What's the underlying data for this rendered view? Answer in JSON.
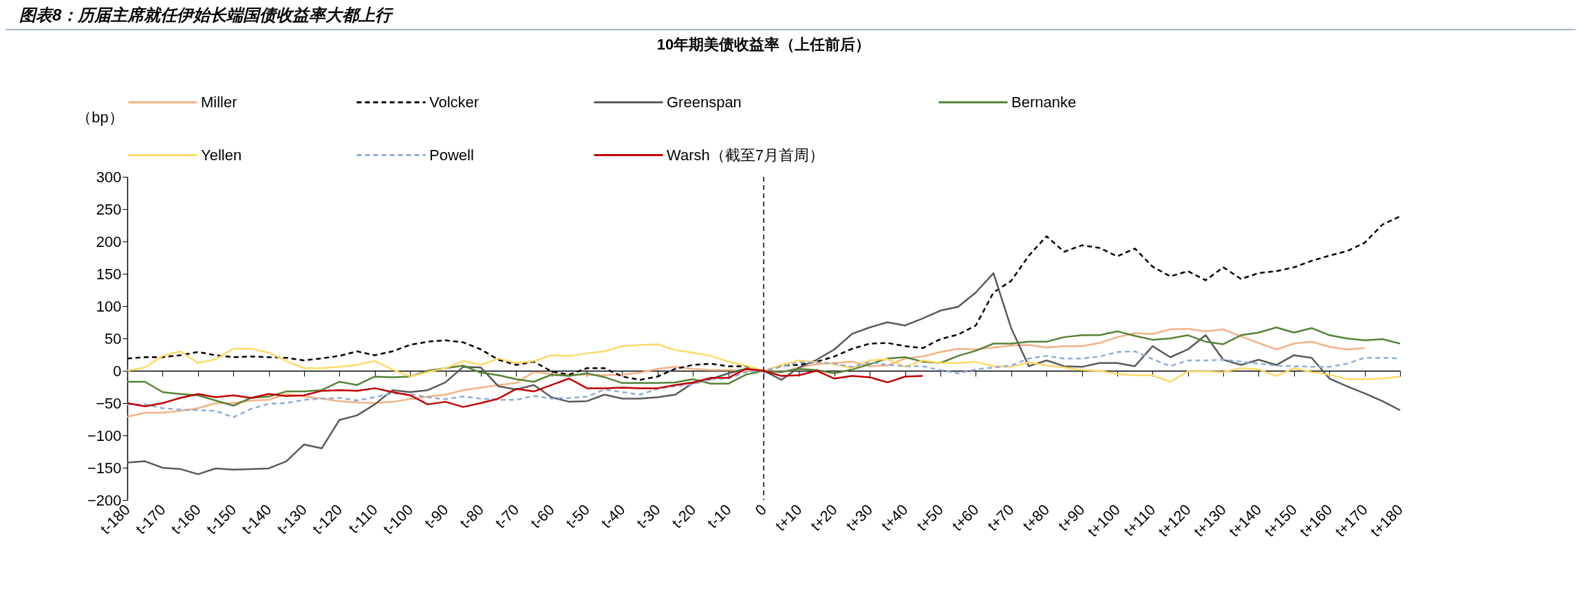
{
  "chart_data": {
    "type": "line",
    "title": "10年期美债收益率（上任前后）",
    "annotations": [
      "图表8：历届主席就任伊始长端国债收益率大都上行"
    ],
    "ylabel": "（bp）",
    "legend": "top",
    "marker": "none",
    "categories": [
      "t-180",
      null,
      "t-170",
      null,
      "t-160",
      null,
      "t-150",
      null,
      "t-140",
      null,
      "t-130",
      null,
      "t-120",
      null,
      "t-110",
      null,
      "t-100",
      null,
      "t-90",
      null,
      "t-80",
      null,
      "t-70",
      null,
      "t-60",
      null,
      "t-50",
      null,
      "t-40",
      null,
      "t-30",
      null,
      "t-20",
      null,
      "t-10",
      null,
      "0",
      null,
      "t+10",
      null,
      "t+20",
      null,
      "t+30",
      null,
      "t+40",
      null,
      "t+50",
      null,
      "t+60",
      null,
      "t+70",
      null,
      "t+80",
      null,
      "t+90",
      null,
      "t+100",
      null,
      "t+110",
      null,
      "t+120",
      null,
      "t+130",
      null,
      "t+140",
      null,
      "t+150",
      null,
      "t+160",
      null,
      "t+170",
      null,
      "t+180"
    ],
    "ylim": [
      -200,
      300
    ],
    "yticks": [
      -200,
      -150,
      -100,
      -50,
      0,
      50,
      100,
      150,
      200,
      250,
      300
    ],
    "ref_lines": [
      {
        "axis": "x",
        "value": "0",
        "line_style": "dashed",
        "color": "#000000"
      }
    ],
    "series": [
      {
        "name": "Miller",
        "color": "#f4b183",
        "line_style": "solid",
        "values": [
          -71,
          -65,
          -65,
          -62,
          -58,
          -50,
          -50,
          -46,
          -45,
          -36,
          -40,
          -43,
          -47,
          -49,
          -50,
          -48,
          -44,
          -40,
          -37,
          -30,
          -26,
          -22,
          -19,
          -2,
          -5,
          -6,
          -6,
          -7,
          -6,
          -3,
          3,
          6,
          3,
          1,
          1,
          0,
          0,
          -2,
          5,
          10,
          12,
          14,
          7,
          8,
          19,
          22,
          29,
          34,
          33,
          36,
          39,
          40,
          36,
          38,
          38,
          43,
          52,
          58,
          57,
          64,
          65,
          61,
          64,
          53,
          43,
          33,
          42,
          45,
          37,
          33,
          35,
          null,
          null
        ]
      },
      {
        "name": "Volcker",
        "color": "#000000",
        "line_style": "dashed",
        "values": [
          19,
          21,
          21,
          24,
          29,
          24,
          21,
          22,
          21,
          20,
          16,
          19,
          23,
          30,
          24,
          30,
          40,
          45,
          47,
          44,
          33,
          17,
          9,
          14,
          -1,
          -6,
          4,
          4,
          -9,
          -14,
          -9,
          3,
          9,
          11,
          7,
          7,
          0,
          8,
          9,
          14,
          22,
          34,
          42,
          43,
          38,
          35,
          49,
          56,
          70,
          121,
          139,
          178,
          208,
          184,
          194,
          190,
          177,
          189,
          161,
          146,
          154,
          140,
          160,
          142,
          151,
          154,
          160,
          170,
          178,
          185,
          198,
          226,
          239
        ]
      },
      {
        "name": "Greenspan",
        "color": "#595959",
        "line_style": "solid",
        "values": [
          -142,
          -140,
          -150,
          -152,
          -160,
          -151,
          -153,
          -152,
          -151,
          -140,
          -114,
          -120,
          -76,
          -69,
          -52,
          -30,
          -33,
          -30,
          -18,
          6,
          5,
          -24,
          -29,
          -22,
          -41,
          -48,
          -47,
          -37,
          -43,
          -43,
          -41,
          -37,
          -19,
          -13,
          -4,
          3,
          0,
          -14,
          5,
          17,
          33,
          57,
          67,
          75,
          70,
          81,
          93,
          99,
          121,
          151,
          66,
          7,
          16,
          7,
          6,
          12,
          12,
          7,
          38,
          21,
          33,
          55,
          17,
          9,
          17,
          9,
          24,
          20,
          -12,
          -24,
          -35,
          -47,
          -61
        ]
      },
      {
        "name": "Bernanke",
        "color": "#548235",
        "line_style": "solid",
        "values": [
          -17,
          -17,
          -33,
          -36,
          -38,
          -46,
          -54,
          -42,
          -40,
          -32,
          -32,
          -30,
          -17,
          -22,
          -9,
          -10,
          -9,
          0,
          4,
          8,
          -3,
          -7,
          -13,
          -17,
          -6,
          -8,
          -4,
          -10,
          -19,
          -19,
          -19,
          -18,
          -13,
          -20,
          -20,
          -6,
          0,
          -2,
          3,
          1,
          -4,
          2,
          10,
          19,
          21,
          14,
          12,
          23,
          31,
          42,
          42,
          45,
          45,
          52,
          55,
          55,
          61,
          54,
          48,
          50,
          55,
          45,
          41,
          55,
          59,
          67,
          59,
          66,
          55,
          50,
          47,
          49,
          42
        ]
      },
      {
        "name": "Yellen",
        "color": "#ffd966",
        "line_style": "solid",
        "values": [
          0,
          5,
          23,
          30,
          12,
          18,
          34,
          34,
          28,
          15,
          4,
          4,
          6,
          9,
          15,
          2,
          -9,
          -2,
          4,
          15,
          9,
          19,
          12,
          15,
          24,
          23,
          27,
          30,
          38,
          40,
          41,
          32,
          28,
          23,
          14,
          8,
          0,
          9,
          16,
          13,
          10,
          4,
          16,
          18,
          6,
          16,
          12,
          12,
          14,
          7,
          6,
          13,
          8,
          5,
          1,
          0,
          -5,
          -7,
          -7,
          -17,
          -1,
          -1,
          -2,
          4,
          2,
          -8,
          4,
          -2,
          -6,
          -13,
          -13,
          -12,
          -9
        ]
      },
      {
        "name": "Powell",
        "color": "#8faadc",
        "line_style": "dashed",
        "values": [
          -52,
          -52,
          -58,
          -60,
          -61,
          -62,
          -72,
          -59,
          -51,
          -50,
          -45,
          -43,
          -42,
          -46,
          -41,
          -35,
          -36,
          -41,
          -44,
          -40,
          -43,
          -45,
          -45,
          -39,
          -43,
          -42,
          -40,
          -29,
          -33,
          -37,
          -28,
          -24,
          -21,
          -13,
          -12,
          -2,
          0,
          6,
          13,
          13,
          11,
          6,
          13,
          9,
          7,
          7,
          1,
          -4,
          2,
          5,
          8,
          19,
          23,
          19,
          19,
          22,
          29,
          30,
          18,
          7,
          16,
          16,
          17,
          14,
          11,
          8,
          7,
          6,
          6,
          11,
          20,
          20,
          19
        ]
      },
      {
        "name": "Warsh（截至7月首周）",
        "color": "#c00000",
        "line_style": "solid",
        "values": [
          -50,
          -55,
          -50,
          -42,
          -36,
          -41,
          -38,
          -42,
          -36,
          -39,
          -38,
          -31,
          -30,
          -31,
          -27,
          -33,
          -38,
          -52,
          -48,
          -56,
          -50,
          -43,
          -28,
          -32,
          -22,
          -12,
          -27,
          -27,
          -26,
          -27,
          -27,
          -22,
          -18,
          -11,
          -11,
          3,
          0,
          -8,
          -7,
          0,
          -12,
          -8,
          -10,
          -18,
          -9,
          -8,
          null,
          null,
          null,
          null,
          null,
          null,
          null,
          null,
          null,
          null,
          null,
          null,
          null,
          null,
          null,
          null,
          null,
          null,
          null,
          null,
          null,
          null,
          null,
          null,
          null,
          null,
          null
        ]
      }
    ]
  }
}
